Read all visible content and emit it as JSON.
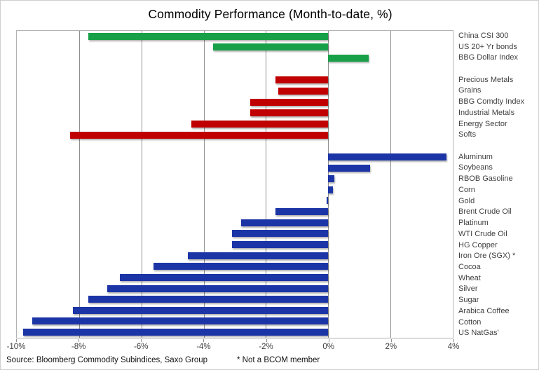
{
  "chart_data": {
    "type": "bar",
    "orientation": "horizontal",
    "title": "Commodity Performance (Month-to-date, %)",
    "x_axis": {
      "min": -10,
      "max": 4,
      "tick_step": 2,
      "unit": "%",
      "ticks": [
        {
          "value": -10,
          "label": "-10%"
        },
        {
          "value": -8,
          "label": "-8%"
        },
        {
          "value": -6,
          "label": "-6%"
        },
        {
          "value": -4,
          "label": "-4%"
        },
        {
          "value": -2,
          "label": "-2%"
        },
        {
          "value": 0,
          "label": "0%"
        },
        {
          "value": 2,
          "label": "2%"
        },
        {
          "value": 4,
          "label": "4%"
        }
      ]
    },
    "grid": true,
    "legend": "none",
    "groups": [
      {
        "name": "macro-indices",
        "color": "#18A049",
        "items": [
          {
            "label": "China CSI 300",
            "value": -7.7
          },
          {
            "label": "US 20+ Yr bonds",
            "value": -3.7
          },
          {
            "label": "BBG Dollar Index",
            "value": 1.3
          }
        ]
      },
      {
        "name": "commodity-sectors",
        "color": "#C00000",
        "items": [
          {
            "label": "Precious Metals",
            "value": -1.7
          },
          {
            "label": "Grains",
            "value": -1.6
          },
          {
            "label": "BBG Comdty Index",
            "value": -2.5
          },
          {
            "label": "Industrial Metals",
            "value": -2.5
          },
          {
            "label": "Energy Sector",
            "value": -4.4
          },
          {
            "label": "Softs",
            "value": -8.3
          }
        ]
      },
      {
        "name": "single-commodities",
        "color": "#1C35A6",
        "items": [
          {
            "label": "Aluminum",
            "value": 3.8
          },
          {
            "label": "Soybeans",
            "value": 1.35
          },
          {
            "label": "RBOB Gasoline",
            "value": 0.2
          },
          {
            "label": "Corn",
            "value": 0.15
          },
          {
            "label": "Gold",
            "value": -0.05
          },
          {
            "label": "Brent Crude Oil",
            "value": -1.7
          },
          {
            "label": "Platinum",
            "value": -2.8
          },
          {
            "label": "WTI Crude Oil",
            "value": -3.1
          },
          {
            "label": "HG Copper",
            "value": -3.1
          },
          {
            "label": "Iron Ore (SGX) *",
            "value": -4.5
          },
          {
            "label": "Cocoa",
            "value": -5.6
          },
          {
            "label": "Wheat",
            "value": -6.7
          },
          {
            "label": "Silver",
            "value": -7.1
          },
          {
            "label": "Sugar",
            "value": -7.7
          },
          {
            "label": "Arabica Coffee",
            "value": -8.2
          },
          {
            "label": "Cotton",
            "value": -9.5
          },
          {
            "label": "US NatGas'",
            "value": -9.8
          }
        ]
      }
    ]
  },
  "footer": {
    "source": "Source: Bloomberg Commodity Subindices, Saxo Group",
    "footnote": "* Not a BCOM member"
  }
}
